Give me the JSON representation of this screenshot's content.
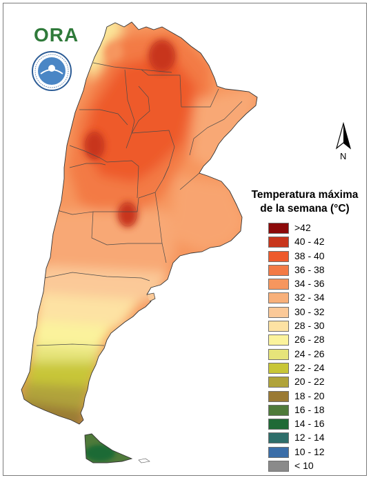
{
  "logo": {
    "text": "ORA",
    "seal_lettering": "SERVICIO METEOROLÓGICO NACIONAL ARGENTINA",
    "seal_icon": "smn-seal-icon"
  },
  "north_arrow": {
    "label": "N",
    "icon": "north-arrow-icon"
  },
  "legend": {
    "title_line1": "Temperatura máxima",
    "title_line2": "de la semana (°C)",
    "items": [
      {
        "label": ">42",
        "color": "#8c0a0a"
      },
      {
        "label": "40 - 42",
        "color": "#c8361c"
      },
      {
        "label": "38 - 40",
        "color": "#ee5a2c"
      },
      {
        "label": "36 - 38",
        "color": "#f37a45"
      },
      {
        "label": "34 - 36",
        "color": "#f6965e"
      },
      {
        "label": "32 - 34",
        "color": "#f8b07a"
      },
      {
        "label": "30 - 32",
        "color": "#fbc998"
      },
      {
        "label": "28 - 30",
        "color": "#fde2a3"
      },
      {
        "label": "26 - 28",
        "color": "#fbf39c"
      },
      {
        "label": "24 - 26",
        "color": "#e6e47a"
      },
      {
        "label": "22 - 24",
        "color": "#c8c637"
      },
      {
        "label": "20 - 22",
        "color": "#b0a33a"
      },
      {
        "label": "18 - 20",
        "color": "#9a7a34"
      },
      {
        "label": "16 - 18",
        "color": "#4f7a3a"
      },
      {
        "label": "14 - 16",
        "color": "#1f6a36"
      },
      {
        "label": "12 - 14",
        "color": "#2e6e6a"
      },
      {
        "label": "10 - 12",
        "color": "#3b6ea8"
      },
      {
        "label": "< 10",
        "color": "#8a8a8a"
      }
    ]
  }
}
